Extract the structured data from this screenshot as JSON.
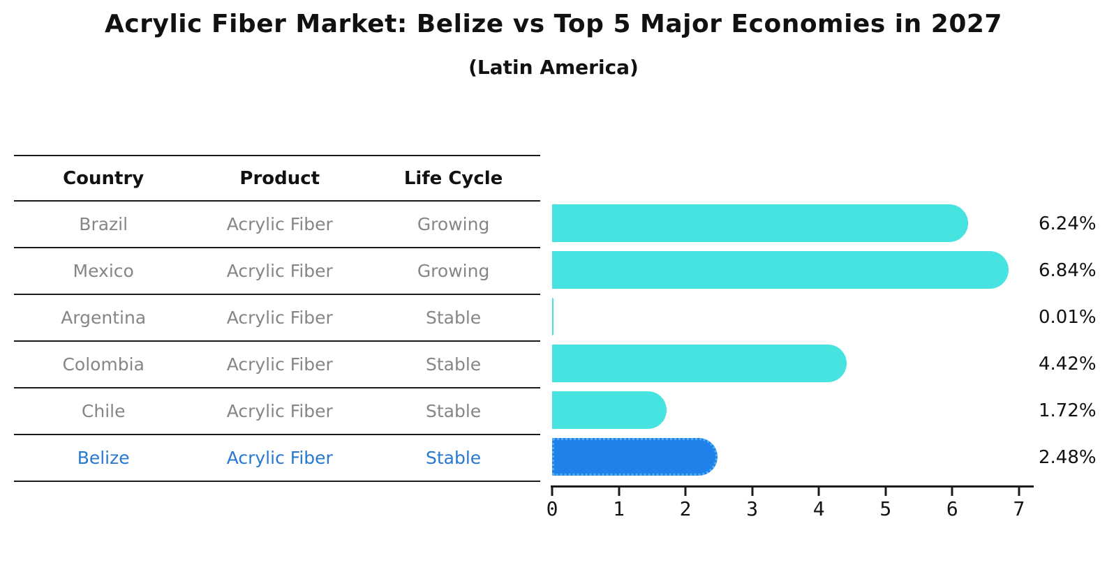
{
  "title": "Acrylic Fiber Market: Belize vs Top 5 Major Economies in 2027",
  "subtitle": "(Latin America)",
  "table": {
    "headers": [
      "Country",
      "Product",
      "Life Cycle"
    ],
    "rows": [
      {
        "country": "Brazil",
        "product": "Acrylic Fiber",
        "life_cycle": "Growing",
        "highlight": false
      },
      {
        "country": "Mexico",
        "product": "Acrylic Fiber",
        "life_cycle": "Growing",
        "highlight": false
      },
      {
        "country": "Argentina",
        "product": "Acrylic Fiber",
        "life_cycle": "Stable",
        "highlight": false
      },
      {
        "country": "Colombia",
        "product": "Acrylic Fiber",
        "life_cycle": "Stable",
        "highlight": false
      },
      {
        "country": "Chile",
        "product": "Acrylic Fiber",
        "life_cycle": "Stable",
        "highlight": false
      },
      {
        "country": "Belize",
        "product": "Acrylic Fiber",
        "life_cycle": "Stable",
        "highlight": true
      }
    ]
  },
  "chart_data": {
    "type": "bar",
    "orientation": "horizontal",
    "title": "Acrylic Fiber Market: Belize vs Top 5 Major Economies in 2027 (Latin America)",
    "categories": [
      "Brazil",
      "Mexico",
      "Argentina",
      "Colombia",
      "Chile",
      "Belize"
    ],
    "values": [
      6.24,
      6.84,
      0.01,
      4.42,
      1.72,
      2.48
    ],
    "value_labels": [
      "6.24%",
      "6.84%",
      "0.01%",
      "4.42%",
      "1.72%",
      "2.48%"
    ],
    "unit": "%",
    "highlight_category": "Belize",
    "x_ticks": [
      0,
      1,
      2,
      3,
      4,
      5,
      6,
      7
    ],
    "xlim": [
      0,
      7.2
    ],
    "xlabel": "",
    "ylabel": "",
    "grid": false,
    "legend": false
  },
  "colors": {
    "bar": "#46e3e0",
    "highlight_bar": "#1e82ea",
    "highlight_bar_border": "#56aef2",
    "row_text": "#868686",
    "highlight_text": "#2778d3",
    "heading_text": "#111111",
    "axis": "#1a1a1a"
  }
}
